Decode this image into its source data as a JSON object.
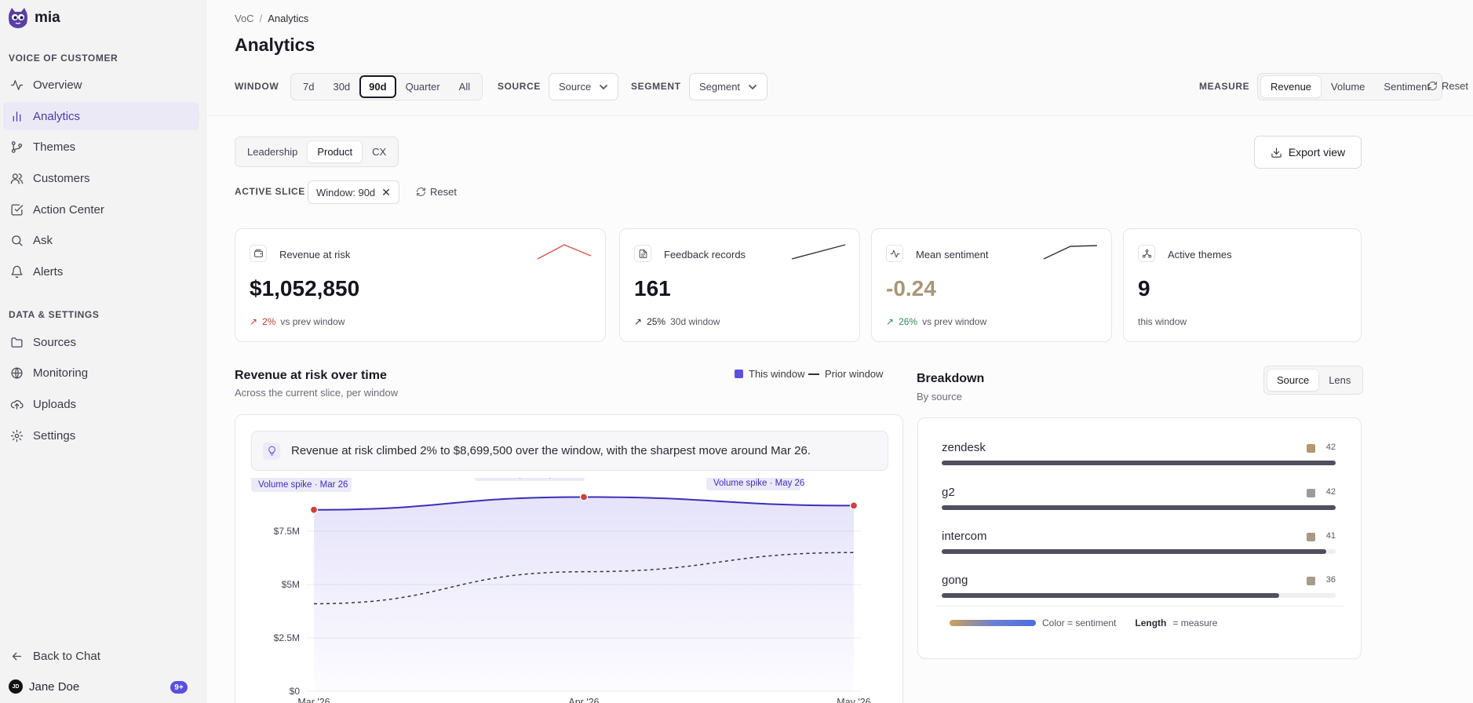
{
  "app": {
    "name": "mia"
  },
  "sidebar": {
    "section1": "VOICE OF CUSTOMER",
    "section2": "DATA & SETTINGS",
    "items": [
      {
        "label": "Overview"
      },
      {
        "label": "Analytics"
      },
      {
        "label": "Themes"
      },
      {
        "label": "Customers"
      },
      {
        "label": "Action Center"
      },
      {
        "label": "Ask"
      },
      {
        "label": "Alerts"
      },
      {
        "label": "Sources"
      },
      {
        "label": "Monitoring"
      },
      {
        "label": "Uploads"
      },
      {
        "label": "Settings"
      }
    ],
    "back": "Back to Chat",
    "user": {
      "initials": "JD",
      "name": "Jane Doe",
      "badge": "9+"
    }
  },
  "breadcrumb": {
    "root": "VoC",
    "sep": "/",
    "current": "Analytics"
  },
  "page_title": "Analytics",
  "filters": {
    "window_label": "WINDOW",
    "window_options": [
      "7d",
      "30d",
      "90d",
      "Quarter",
      "All"
    ],
    "window_selected": "90d",
    "source_label": "SOURCE",
    "source_value": "Source",
    "segment_label": "SEGMENT",
    "segment_value": "Segment",
    "measure_label": "MEASURE",
    "measure_options": [
      "Revenue",
      "Volume",
      "Sentiment"
    ],
    "measure_selected": "Revenue",
    "reset": "Reset"
  },
  "lens_tabs": [
    "Leadership",
    "Product",
    "CX"
  ],
  "lens_selected": "Product",
  "export": "Export view",
  "active_slice": {
    "label": "ACTIVE SLICE",
    "chip": "Window: 90d",
    "reset": "Reset"
  },
  "kpis": [
    {
      "label": "Revenue at risk",
      "value": "$1,052,850",
      "delta": "2%",
      "note": "vs prev window",
      "delta_color": "#c0392b"
    },
    {
      "label": "Feedback records",
      "value": "161",
      "delta": "25%",
      "note": "30d window",
      "delta_color": "#2a2a36"
    },
    {
      "label": "Mean sentiment",
      "value": "-0.24",
      "delta": "26%",
      "note": "vs prev window",
      "delta_color": "#2e8b57",
      "value_color": "#a8967a"
    },
    {
      "label": "Active themes",
      "value": "9",
      "note": "this window"
    }
  ],
  "chart": {
    "title": "Revenue at risk over time",
    "subtitle": "Across the current slice, per window",
    "legend_this": "This window",
    "legend_prior": "Prior window",
    "insight": "Revenue at risk climbed 2% to $8,699,500 over the window, with the sharpest move around Mar 26.",
    "annotations": [
      "Volume spike · Mar 26",
      "Volume spike · Apr 26",
      "Volume spike · May 26"
    ]
  },
  "chart_data": {
    "type": "line",
    "x": [
      "Mar '26",
      "Apr '26",
      "May '26"
    ],
    "y_ticks": [
      "$0",
      "$2.5M",
      "$5M",
      "$7.5M"
    ],
    "ylim": [
      0,
      10000000
    ],
    "series": [
      {
        "name": "This window",
        "values": [
          8500000,
          9100000,
          8700000
        ],
        "color": "#3b2fb8"
      },
      {
        "name": "Prior window",
        "values": [
          4100000,
          5600000,
          6500000
        ],
        "color": "#333340"
      }
    ]
  },
  "breakdown": {
    "title": "Breakdown",
    "subtitle": "By source",
    "tabs": [
      "Source",
      "Lens"
    ],
    "tab_selected": "Source",
    "rows": [
      {
        "name": "zendesk",
        "count": "42",
        "value": 42,
        "color": "#b09a6d"
      },
      {
        "name": "g2",
        "count": "42",
        "value": 42,
        "color": "#9f9c96"
      },
      {
        "name": "intercom",
        "count": "41",
        "value": 41,
        "color": "#a8997e"
      },
      {
        "name": "gong",
        "count": "36",
        "value": 36,
        "color": "#a59c8c"
      }
    ],
    "legend_color": "Color = sentiment",
    "legend_length_bold": "Length",
    "legend_length_rest": "= measure"
  }
}
